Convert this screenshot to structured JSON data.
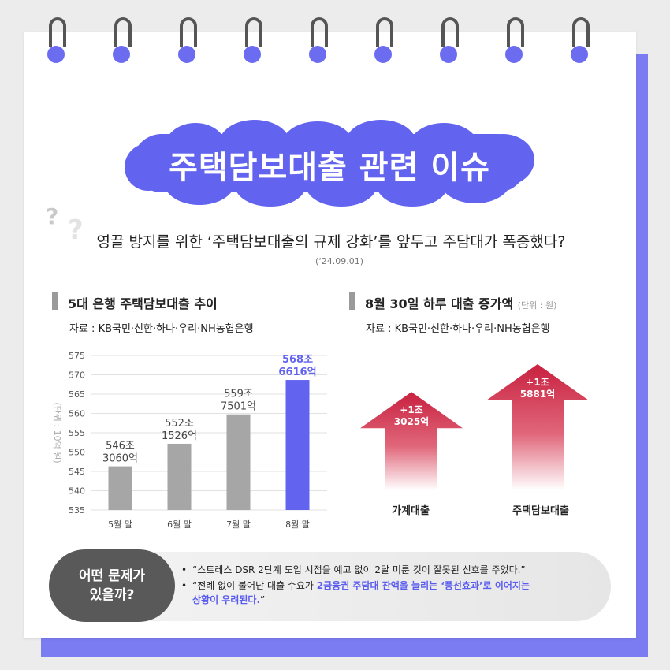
{
  "title": "주택담보대출 관련 이슈",
  "question": "영끌 방지를 위한 ‘주택담보대출의 규제 강화’를 앞두고 주담대가 폭증했다?",
  "question_date": "(‘24.09.01)",
  "question_marks": [
    "?",
    "?"
  ],
  "section_left": {
    "title": "5대 은행 주택담보대출 추이",
    "source": "자료 : KB국민·신한·하나·우리·NH농협은행"
  },
  "section_right": {
    "title": "8월 30일 하루 대출 증가액",
    "unit": "(단위 : 원)",
    "source": "자료 : KB국민·신한·하나·우리·NH농협은행"
  },
  "colors": {
    "accent": "#6264f0",
    "bar_gray": "#a6a6a6",
    "arrow_red": "#c8213f",
    "bubble": "#595959"
  },
  "chart_data": [
    {
      "type": "bar",
      "ylabel": "(단위 : 10억 원)",
      "ylim": [
        535,
        575
      ],
      "yticks": [
        535,
        540,
        545,
        550,
        555,
        560,
        565,
        570,
        575
      ],
      "grid": true,
      "categories": [
        "5월 말",
        "6월 말",
        "7월 말",
        "8월 말"
      ],
      "values": [
        546.306,
        552.1526,
        559.7501,
        568.6616
      ],
      "value_labels": [
        [
          "546조",
          "3060억"
        ],
        [
          "552조",
          "1526억"
        ],
        [
          "559조",
          "7501억"
        ],
        [
          "568조",
          "6616억"
        ]
      ],
      "highlight_index": 3
    },
    {
      "type": "bar",
      "style": "arrows",
      "categories": [
        "가계대출",
        "주택담보대출"
      ],
      "values": [
        1.3025,
        1.5881
      ],
      "value_labels": [
        [
          "+1조",
          "3025억"
        ],
        [
          "+1조",
          "5881억"
        ]
      ]
    }
  ],
  "bottom": {
    "bubble_lines": [
      "어떤 문제가",
      "있을까?"
    ],
    "bullet": "•",
    "quote1": "“스트레스 DSR 2단계 도입 시점을 예고 없이 2달 미룬 것이 잘못된 신호를 주었다.”",
    "quote2_a": "“전례 없이 불어난 대출 수요가 ",
    "quote2_b": "2금융권 주담대 잔액을 늘리는 ‘풍선효과’로 이어지는",
    "quote2_c": "상황이 우려된다.",
    "quote2_d": "”"
  }
}
